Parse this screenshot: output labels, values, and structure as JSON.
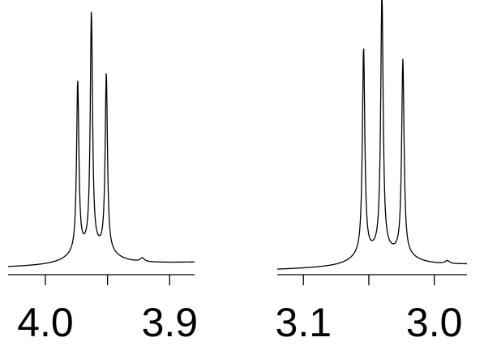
{
  "chart_data": [
    {
      "type": "line",
      "title": "",
      "xlabel": "",
      "ylabel": "",
      "x_reversed": true,
      "xlim": [
        4.03,
        3.88
      ],
      "ylim": [
        0,
        1.07
      ],
      "grid": false,
      "ticks": [
        {
          "value": 4.05,
          "label": ""
        },
        {
          "value": 4.0,
          "label": "4.0"
        },
        {
          "value": 3.95,
          "label": ""
        },
        {
          "value": 3.9,
          "label": "3.9"
        }
      ],
      "series": [
        {
          "peaks": [
            {
              "ppm": 3.974,
              "height": 0.7
            },
            {
              "ppm": 3.963,
              "height": 0.97
            },
            {
              "ppm": 3.951,
              "height": 0.73
            }
          ],
          "baseline_start": 0.0,
          "baseline_end": 0.02,
          "shoulders": [
            {
              "ppm": 3.922,
              "height": 0.015
            }
          ]
        }
      ]
    },
    {
      "type": "line",
      "title": "",
      "xlabel": "",
      "ylabel": "",
      "x_reversed": true,
      "xlim": [
        3.12,
        2.975
      ],
      "ylim": [
        0,
        1.07
      ],
      "grid": false,
      "ticks": [
        {
          "value": 3.15,
          "label": ""
        },
        {
          "value": 3.1,
          "label": "3.1"
        },
        {
          "value": 3.05,
          "label": ""
        },
        {
          "value": 3.0,
          "label": "3.0"
        }
      ],
      "series": [
        {
          "peaks": [
            {
              "ppm": 3.054,
              "height": 0.84
            },
            {
              "ppm": 3.04,
              "height": 1.05
            },
            {
              "ppm": 3.024,
              "height": 0.79
            }
          ],
          "baseline_start": 0.0,
          "baseline_end": 0.02,
          "shoulders": [
            {
              "ppm": 2.99,
              "height": 0.012
            }
          ]
        }
      ]
    }
  ]
}
